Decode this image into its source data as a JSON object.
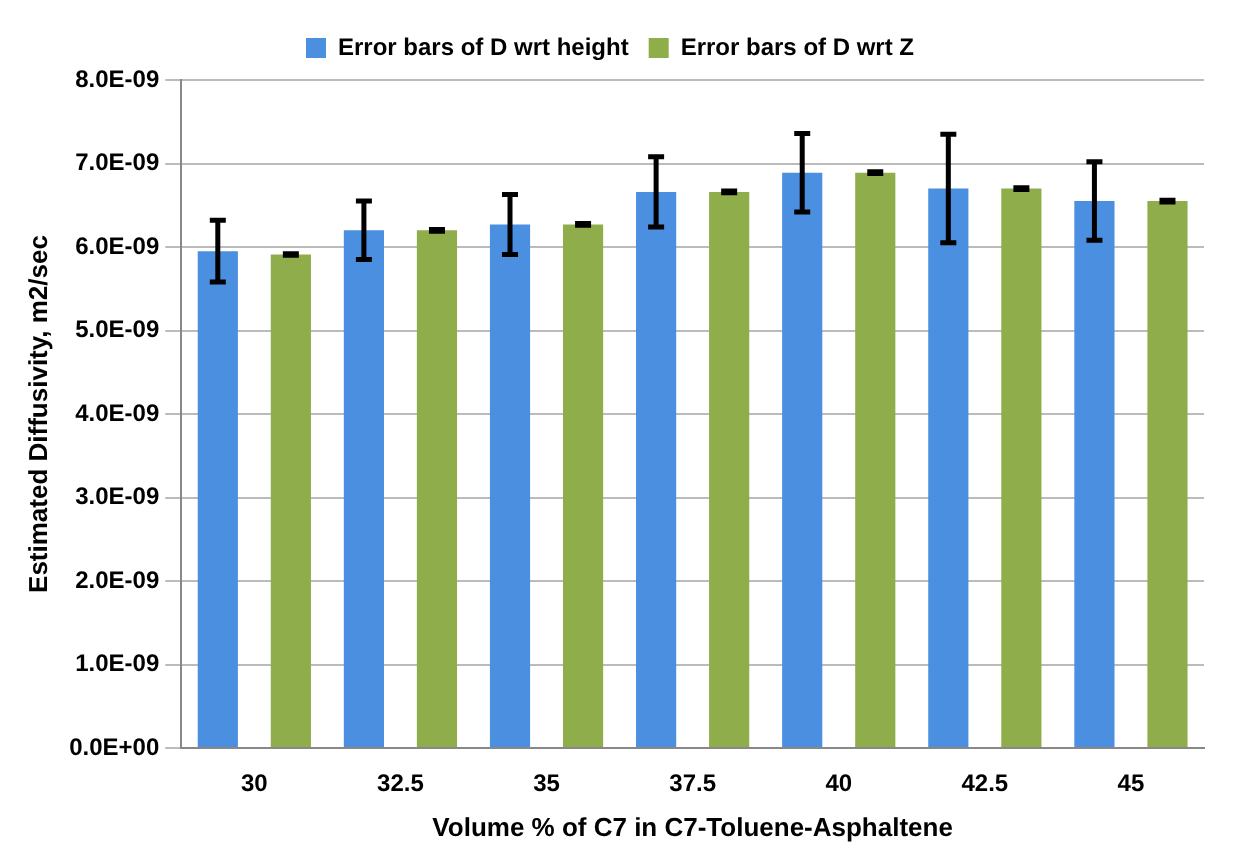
{
  "chart_data": {
    "type": "bar",
    "xlabel": "Volume % of C7 in C7-Toluene-Asphaltene",
    "ylabel": "Estimated Diffusivity, m2/sec",
    "categories": [
      "30",
      "32.5",
      "35",
      "37.5",
      "40",
      "42.5",
      "45"
    ],
    "series": [
      {
        "name": "Error bars of D wrt height",
        "color": "#4a8fe0",
        "values": [
          5.95e-09,
          6.2e-09,
          6.27e-09,
          6.66e-09,
          6.89e-09,
          6.7e-09,
          6.55e-09
        ],
        "errors": [
          3.7e-10,
          3.5e-10,
          3.6e-10,
          4.2e-10,
          4.7e-10,
          6.5e-10,
          4.7e-10
        ]
      },
      {
        "name": "Error bars of D wrt Z",
        "color": "#8fad4a",
        "values": [
          5.91e-09,
          6.2e-09,
          6.27e-09,
          6.66e-09,
          6.89e-09,
          6.7e-09,
          6.55e-09
        ],
        "errors": [
          1e-11,
          1e-11,
          1e-11,
          1e-11,
          1e-11,
          1e-11,
          1e-11
        ]
      }
    ],
    "ylim": [
      0,
      8e-09
    ],
    "yticks": [
      {
        "value": 0,
        "label": "0.0E+00"
      },
      {
        "value": 1e-09,
        "label": "1.0E-09"
      },
      {
        "value": 2e-09,
        "label": "2.0E-09"
      },
      {
        "value": 3e-09,
        "label": "3.0E-09"
      },
      {
        "value": 4e-09,
        "label": "4.0E-09"
      },
      {
        "value": 5e-09,
        "label": "5.0E-09"
      },
      {
        "value": 6e-09,
        "label": "6.0E-09"
      },
      {
        "value": 7e-09,
        "label": "7.0E-09"
      },
      {
        "value": 8e-09,
        "label": "8.0E-09"
      }
    ],
    "grid": "y",
    "legend": "top"
  }
}
